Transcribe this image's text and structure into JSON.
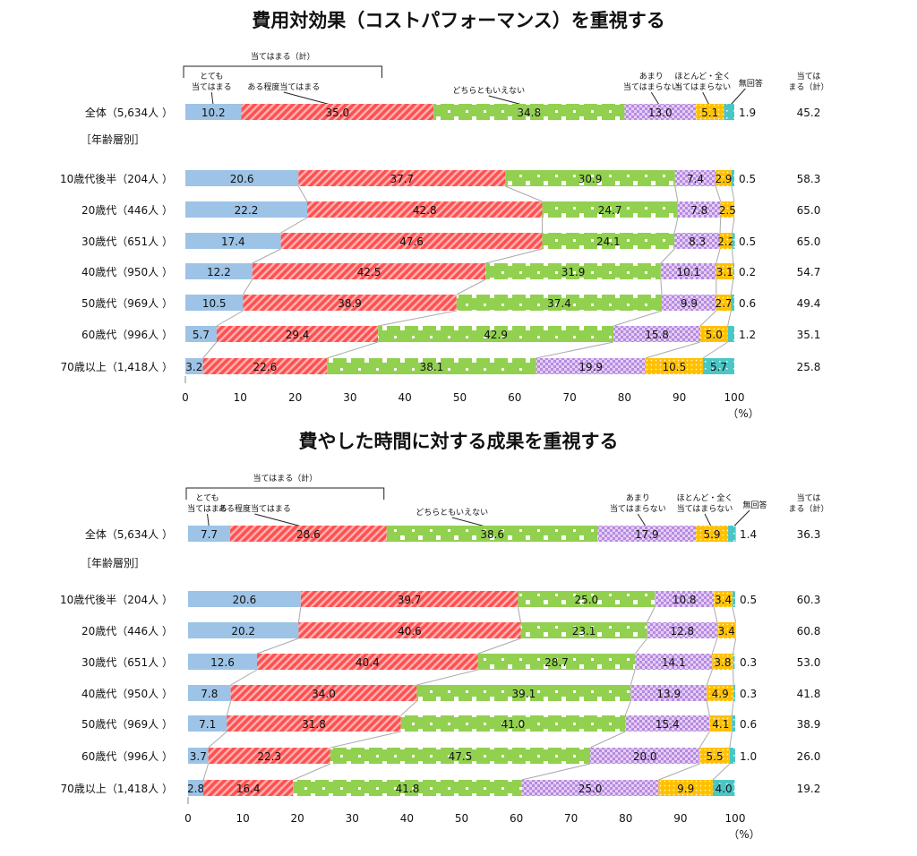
{
  "chart_data": [
    {
      "type": "bar",
      "stacked": true,
      "orientation": "horizontal",
      "title": "費用対効果（コストパフォーマンス）を重視する",
      "series_names": [
        "とても当てはまる",
        "ある程度当てはまる",
        "どちらともいえない",
        "あまり当てはまらない",
        "ほとんど・全く当てはまらない",
        "無回答"
      ],
      "series_label_lines": [
        [
          "とても",
          "当てはまる"
        ],
        [
          "ある程度当てはまる"
        ],
        [
          "どちらともいえない"
        ],
        [
          "あまり",
          "当てはまらない"
        ],
        [
          "ほとんど・全く",
          "当てはまらない"
        ],
        [
          "無回答"
        ]
      ],
      "bracket_label": "当てはまる（計）",
      "total_header": [
        "当ては",
        "まる（計）"
      ],
      "section_label": "［年齢層別］",
      "xlim": [
        0,
        100
      ],
      "xticks": [
        0,
        10,
        20,
        30,
        40,
        50,
        60,
        70,
        80,
        90,
        100
      ],
      "unit": "（%）",
      "rows": [
        {
          "label": "全体（5,634人 ）",
          "values": [
            10.2,
            35.0,
            34.8,
            13.0,
            5.1,
            1.9
          ],
          "total": "45.2"
        },
        {
          "label": "10歳代後半（204人 ）",
          "values": [
            20.6,
            37.7,
            30.9,
            7.4,
            2.9,
            0.5
          ],
          "total": "58.3"
        },
        {
          "label": "20歳代（446人 ）",
          "values": [
            22.2,
            42.8,
            24.7,
            7.8,
            2.5,
            null
          ],
          "total": "65.0"
        },
        {
          "label": "30歳代（651人 ）",
          "values": [
            17.4,
            47.6,
            24.1,
            8.3,
            2.2,
            0.5
          ],
          "total": "65.0"
        },
        {
          "label": "40歳代（950人 ）",
          "values": [
            12.2,
            42.5,
            31.9,
            10.1,
            3.1,
            0.2
          ],
          "total": "54.7"
        },
        {
          "label": "50歳代（969人 ）",
          "values": [
            10.5,
            38.9,
            37.4,
            9.9,
            2.7,
            0.6
          ],
          "total": "49.4"
        },
        {
          "label": "60歳代（996人 ）",
          "values": [
            5.7,
            29.4,
            42.9,
            15.8,
            5.0,
            1.2
          ],
          "total": "35.1"
        },
        {
          "label": "70歳以上（1,418人 ）",
          "values": [
            3.2,
            22.6,
            38.1,
            19.9,
            10.5,
            5.7
          ],
          "total": "25.8"
        }
      ]
    },
    {
      "type": "bar",
      "stacked": true,
      "orientation": "horizontal",
      "title": "費やした時間に対する成果を重視する",
      "series_names": [
        "とても当てはまる",
        "ある程度当てはまる",
        "どちらともいえない",
        "あまり当てはまらない",
        "ほとんど・全く当てはまらない",
        "無回答"
      ],
      "series_label_lines": [
        [
          "とても",
          "当てはまる"
        ],
        [
          "ある程度当てはまる"
        ],
        [
          "どちらともいえない"
        ],
        [
          "あまり",
          "当てはまらない"
        ],
        [
          "ほとんど・全く",
          "当てはまらない"
        ],
        [
          "無回答"
        ]
      ],
      "bracket_label": "当てはまる（計）",
      "total_header": [
        "当ては",
        "まる（計）"
      ],
      "section_label": "［年齢層別］",
      "xlim": [
        0,
        100
      ],
      "xticks": [
        0,
        10,
        20,
        30,
        40,
        50,
        60,
        70,
        80,
        90,
        100
      ],
      "unit": "（%）",
      "rows": [
        {
          "label": "全体（5,634人 ）",
          "values": [
            7.7,
            28.6,
            38.6,
            17.9,
            5.9,
            1.4
          ],
          "total": "36.3"
        },
        {
          "label": "10歳代後半（204人 ）",
          "values": [
            20.6,
            39.7,
            25.0,
            10.8,
            3.4,
            0.5
          ],
          "total": "60.3"
        },
        {
          "label": "20歳代（446人 ）",
          "values": [
            20.2,
            40.6,
            23.1,
            12.8,
            3.4,
            null
          ],
          "total": "60.8"
        },
        {
          "label": "30歳代（651人 ）",
          "values": [
            12.6,
            40.4,
            28.7,
            14.1,
            3.8,
            0.3
          ],
          "total": "53.0"
        },
        {
          "label": "40歳代（950人 ）",
          "values": [
            7.8,
            34.0,
            39.1,
            13.9,
            4.9,
            0.3
          ],
          "total": "41.8"
        },
        {
          "label": "50歳代（969人 ）",
          "values": [
            7.1,
            31.8,
            41.0,
            15.4,
            4.1,
            0.6
          ],
          "total": "38.9"
        },
        {
          "label": "60歳代（996人 ）",
          "values": [
            3.7,
            22.3,
            47.5,
            20.0,
            5.5,
            1.0
          ],
          "total": "26.0"
        },
        {
          "label": "70歳以上（1,418人 ）",
          "values": [
            2.8,
            16.4,
            41.8,
            25.0,
            9.9,
            4.0
          ],
          "total": "19.2"
        }
      ]
    }
  ],
  "colors": {
    "blue": "#9dc3e6",
    "red": "#ff5f5f",
    "green": "#92d050",
    "purple": "#c8a2e8",
    "yellow": "#ffc000",
    "teal": "#4bc6c6"
  }
}
